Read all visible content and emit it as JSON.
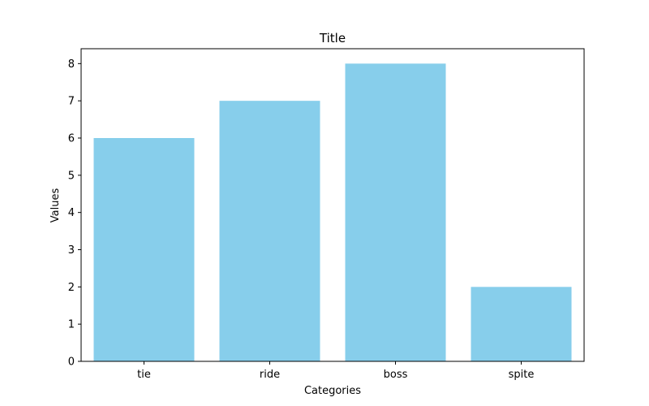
{
  "chart_data": {
    "type": "bar",
    "title": "Title",
    "xlabel": "Categories",
    "ylabel": "Values",
    "categories": [
      "tie",
      "ride",
      "boss",
      "spite"
    ],
    "values": [
      6,
      7,
      8,
      2
    ],
    "yticks": [
      "0",
      "1",
      "2",
      "3",
      "4",
      "5",
      "6",
      "7",
      "8"
    ],
    "ylim": [
      0,
      8.4
    ],
    "grid": false,
    "bar_color": "#87ceeb",
    "axis_color": "#000000"
  }
}
